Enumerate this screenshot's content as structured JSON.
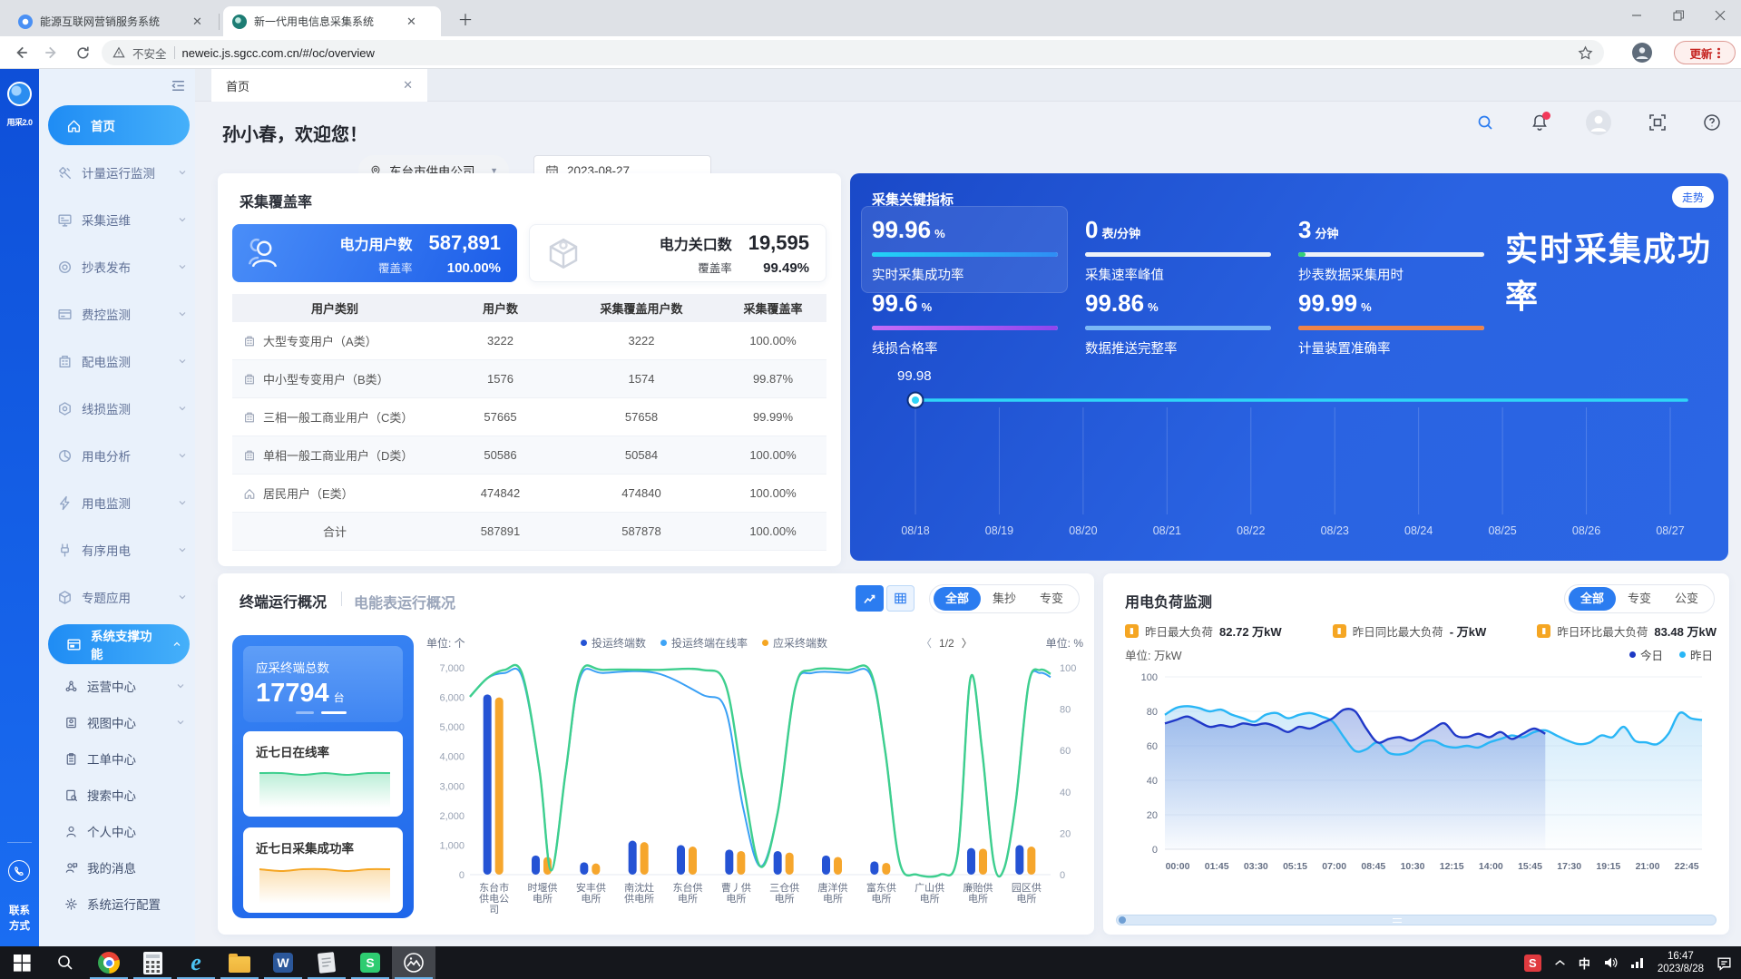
{
  "browser": {
    "tabs": [
      {
        "title": "能源互联网营销服务系统",
        "active": false
      },
      {
        "title": "新一代用电信息采集系统",
        "active": true
      }
    ],
    "security_label": "不安全",
    "url": "neweic.js.sgcc.com.cn/#/oc/overview",
    "update_label": "更新"
  },
  "brand": {
    "app_version": "用采2.0",
    "contact_line1": "联系",
    "contact_line2": "方式"
  },
  "header": {
    "page_tab": "首页",
    "greeting": "孙小春，欢迎您！",
    "org": "东台市供电公司",
    "date": "2023-08-27",
    "icons": [
      "search-icon",
      "bell-icon",
      "avatar",
      "fullscreen-icon",
      "help-icon"
    ]
  },
  "sidebar": {
    "items": [
      {
        "label": "首页",
        "icon": "home",
        "level": 1,
        "active": true,
        "arrow": null
      },
      {
        "label": "计量运行监测",
        "icon": "satellite",
        "level": 1,
        "arrow": "down"
      },
      {
        "label": "采集运维",
        "icon": "monitor",
        "level": 1,
        "arrow": "down"
      },
      {
        "label": "抄表发布",
        "icon": "target",
        "level": 1,
        "arrow": "down"
      },
      {
        "label": "费控监测",
        "icon": "card",
        "level": 1,
        "arrow": "down"
      },
      {
        "label": "配电监测",
        "icon": "building",
        "level": 1,
        "arrow": "down"
      },
      {
        "label": "线损监测",
        "icon": "hexagon",
        "level": 1,
        "arrow": "down"
      },
      {
        "label": "用电分析",
        "icon": "pie",
        "level": 1,
        "arrow": "down"
      },
      {
        "label": "用电监测",
        "icon": "flash",
        "level": 1,
        "arrow": "down"
      },
      {
        "label": "有序用电",
        "icon": "plug",
        "level": 1,
        "arrow": "down"
      },
      {
        "label": "专题应用",
        "icon": "cube",
        "level": 1,
        "arrow": "down"
      },
      {
        "label": "系统支撑功能",
        "icon": "panel",
        "level": 1,
        "active": true,
        "arrow": "up"
      },
      {
        "label": "运营中心",
        "icon": "nodes",
        "level": 2,
        "arrow": "down"
      },
      {
        "label": "视图中心",
        "icon": "idcard",
        "level": 2,
        "arrow": "down"
      },
      {
        "label": "工单中心",
        "icon": "clipboard",
        "level": 2,
        "arrow": null
      },
      {
        "label": "搜索中心",
        "icon": "docsearch",
        "level": 2,
        "arrow": null
      },
      {
        "label": "个人中心",
        "icon": "person",
        "level": 2,
        "arrow": null
      },
      {
        "label": "我的消息",
        "icon": "chat",
        "level": 2,
        "arrow": null
      },
      {
        "label": "系统运行配置",
        "icon": "gear",
        "level": 2,
        "arrow": null
      }
    ]
  },
  "coverage": {
    "title": "采集覆盖率",
    "stats": [
      {
        "icon": "users-icon",
        "label": "电力用户数",
        "value": "587,891",
        "sub_label": "覆盖率",
        "sub_value": "100.00%",
        "variant": "blue"
      },
      {
        "icon": "box-icon",
        "label": "电力关口数",
        "value": "19,595",
        "sub_label": "覆盖率",
        "sub_value": "99.49%",
        "variant": "white"
      }
    ],
    "table": {
      "headers": [
        "用户类别",
        "用户数",
        "采集覆盖用户数",
        "采集覆盖率"
      ],
      "rows": [
        {
          "icon": "building",
          "category": "大型专变用户（A类）",
          "users": "3222",
          "covered": "3222",
          "rate": "100.00%"
        },
        {
          "icon": "building",
          "category": "中小型专变用户（B类）",
          "users": "1576",
          "covered": "1574",
          "rate": "99.87%"
        },
        {
          "icon": "building",
          "category": "三相一般工商业用户（C类）",
          "users": "57665",
          "covered": "57658",
          "rate": "99.99%"
        },
        {
          "icon": "building",
          "category": "单相一般工商业用户（D类）",
          "users": "50586",
          "covered": "50584",
          "rate": "100.00%"
        },
        {
          "icon": "home",
          "category": "居民用户（E类）",
          "users": "474842",
          "covered": "474840",
          "rate": "100.00%"
        },
        {
          "icon": null,
          "category": "合计",
          "users": "587891",
          "covered": "587878",
          "rate": "100.00%"
        }
      ]
    }
  },
  "kpi": {
    "title": "采集关键指标",
    "trend_button": "走势",
    "big_text": "实时采集成功率",
    "cards": [
      {
        "value": "99.96",
        "unit": "%",
        "label": "实时采集成功率",
        "bar_color": "linear-gradient(90deg,#22d3f7,#2f8df5)",
        "bar_pct": 100,
        "highlight": true
      },
      {
        "value": "0",
        "unit": "表/分钟",
        "label": "采集速率峰值",
        "bar_color": "#eef2f8",
        "bar_pct": 100
      },
      {
        "value": "3",
        "unit": "分钟",
        "label": "抄表数据采集用时",
        "bar_color": "#eef2f8",
        "bar_pct": 100,
        "bar_cap_color": "#35d07a",
        "bar_cap_pct": 4
      },
      {
        "value": "99.6",
        "unit": "%",
        "label": "线损合格率",
        "bar_color": "linear-gradient(90deg,#c66df7,#8f46ee)",
        "bar_pct": 100
      },
      {
        "value": "99.86",
        "unit": "%",
        "label": "数据推送完整率",
        "bar_color": "#7ab8f5",
        "bar_pct": 100
      },
      {
        "value": "99.99",
        "unit": "%",
        "label": "计量装置准确率",
        "bar_color": "#ef8348",
        "bar_pct": 100
      }
    ]
  },
  "terminal": {
    "title": "终端运行概况",
    "title2": "电能表运行概况",
    "segments": [
      "全部",
      "集抄",
      "专变"
    ],
    "active_segment": "全部",
    "total_label": "应采终端总数",
    "total_value": "17794",
    "total_unit": "台",
    "spark1_label": "近七日在线率",
    "spark2_label": "近七日采集成功率",
    "unit_left": "单位: 个",
    "unit_right": "单位: %",
    "pagination": "1/2",
    "legend": [
      {
        "name": "投运终端数",
        "color": "#2553d4"
      },
      {
        "name": "投运终端在线率",
        "color": "#3fa4f6"
      },
      {
        "name": "应采终端数",
        "color": "#f5a623"
      }
    ]
  },
  "load": {
    "title": "用电负荷监测",
    "segments": [
      "全部",
      "专变",
      "公变"
    ],
    "active_segment": "全部",
    "stats": [
      {
        "label": "昨日最大负荷",
        "value": "82.72 万kW"
      },
      {
        "label": "昨日同比最大负荷",
        "value": "- 万kW"
      },
      {
        "label": "昨日环比最大负荷",
        "value": "83.48 万kW"
      }
    ],
    "unit": "单位: 万kW",
    "legend": [
      {
        "name": "今日",
        "color": "#1d39c4"
      },
      {
        "name": "昨日",
        "color": "#29b6f6"
      }
    ]
  },
  "taskbar": {
    "time": "16:47",
    "date": "2023/8/28",
    "apps": [
      {
        "name": "start-button",
        "open": false
      },
      {
        "name": "taskbar-search",
        "open": false
      },
      {
        "name": "chrome",
        "open": true
      },
      {
        "name": "calculator",
        "open": true
      },
      {
        "name": "internet-explorer",
        "open": true
      },
      {
        "name": "file-explorer",
        "open": true
      },
      {
        "name": "word",
        "open": true
      },
      {
        "name": "notepad",
        "open": true
      },
      {
        "name": "app-s",
        "open": true
      },
      {
        "name": "screenshot-tool",
        "open": true,
        "active": true
      }
    ],
    "tray": [
      "tray-s",
      "chevron-up",
      "ime",
      "volume",
      "network"
    ]
  },
  "chart_data": [
    {
      "name": "采集关键指标-实时采集成功率走势",
      "type": "line",
      "x": [
        "08/18",
        "08/19",
        "08/20",
        "08/21",
        "08/22",
        "08/23",
        "08/24",
        "08/25",
        "08/26",
        "08/27"
      ],
      "series": [
        {
          "name": "实时采集成功率",
          "values": [
            99.98,
            99.98,
            99.98,
            99.98,
            99.98,
            99.98,
            99.98,
            99.98,
            99.98,
            99.98
          ]
        }
      ],
      "point_label": "99.98",
      "ylim": [
        99.9,
        100.0
      ],
      "grid": true,
      "line_color": "#2fd5f8"
    },
    {
      "name": "终端运行概况",
      "type": "bar",
      "categories": [
        "东台市供电公司",
        "时堰供电所",
        "安丰供电所",
        "南沈灶供电所",
        "东台供电所",
        "曹丿供电所",
        "三仓供电所",
        "唐洋供电所",
        "富东供电所",
        "广山供电所",
        "廉贻供电所",
        "园区供电所"
      ],
      "series": [
        {
          "name": "投运终端数",
          "type": "bar",
          "color": "#2553d4",
          "values": [
            6100,
            650,
            420,
            1150,
            1000,
            850,
            800,
            650,
            450,
            0,
            900,
            1000
          ]
        },
        {
          "name": "应采终端数",
          "type": "bar",
          "color": "#f6a62c",
          "values": [
            6000,
            600,
            380,
            1100,
            950,
            800,
            750,
            600,
            400,
            0,
            880,
            950
          ]
        },
        {
          "name": "投运终端在线率",
          "type": "line",
          "color": "#3aa0f5",
          "axis": "percent",
          "points": [
            [
              0,
              86
            ],
            [
              0.03,
              95
            ],
            [
              0.06,
              99
            ],
            [
              0.09,
              97
            ],
            [
              0.12,
              50
            ],
            [
              0.14,
              2
            ],
            [
              0.165,
              50
            ],
            [
              0.19,
              97
            ],
            [
              0.23,
              99
            ],
            [
              0.32,
              99
            ],
            [
              0.4,
              99
            ],
            [
              0.44,
              92
            ],
            [
              0.47,
              45
            ],
            [
              0.5,
              4
            ],
            [
              0.53,
              30
            ],
            [
              0.56,
              90
            ],
            [
              0.59,
              99
            ],
            [
              0.65,
              99
            ],
            [
              0.69,
              98
            ],
            [
              0.715,
              60
            ],
            [
              0.74,
              6
            ],
            [
              0.77,
              0
            ],
            [
              0.81,
              0
            ],
            [
              0.84,
              10
            ],
            [
              0.862,
              95
            ],
            [
              0.882,
              60
            ],
            [
              0.902,
              6
            ],
            [
              0.92,
              3
            ],
            [
              0.94,
              35
            ],
            [
              0.962,
              92
            ],
            [
              0.982,
              99
            ],
            [
              1,
              97
            ]
          ]
        },
        {
          "name": "",
          "note": "绿色曲线，图例在第2/2页（名称不可见）",
          "type": "line",
          "color": "#3ecf8e",
          "axis": "percent",
          "same_shape_as": 2
        }
      ],
      "ylim_left": [
        0,
        7000
      ],
      "ylim_right": [
        0,
        100
      ],
      "legend_pages": "1/2"
    },
    {
      "name": "用电负荷监测",
      "type": "line",
      "x_labels": [
        "00:00",
        "01:45",
        "03:30",
        "05:15",
        "07:00",
        "08:45",
        "10:30",
        "12:15",
        "14:00",
        "15:45",
        "17:30",
        "19:15",
        "21:00",
        "22:45"
      ],
      "sample_interval_minutes": 30,
      "series": [
        {
          "name": "今日",
          "color": "#2038c8",
          "values": [
            73,
            75,
            77,
            74,
            71,
            72,
            71,
            73,
            72,
            73,
            71,
            68,
            71,
            70,
            73,
            76,
            81,
            80,
            70,
            62,
            64,
            65,
            63,
            66,
            70,
            73,
            66,
            65,
            67,
            65,
            68,
            64,
            67,
            70,
            67
          ]
        },
        {
          "name": "昨日",
          "color": "#29b6f6",
          "values": [
            78,
            82,
            83,
            82,
            80,
            81,
            78,
            76,
            74,
            78,
            79,
            76,
            78,
            79,
            77,
            74,
            65,
            57,
            58,
            62,
            56,
            55,
            57,
            62,
            63,
            60,
            59,
            60,
            59,
            62,
            64,
            66,
            65,
            68,
            69,
            66,
            63,
            61,
            62,
            66,
            65,
            71,
            63,
            62,
            61,
            67,
            79,
            76,
            75
          ]
        }
      ],
      "ylim": [
        0,
        100
      ],
      "ylabel": "万kW",
      "grid": true
    },
    {
      "name": "近七日趋势小图",
      "type": "area",
      "series": [
        {
          "name": "近七日在线率",
          "color": "#3ecf8e",
          "values": [
            100,
            100,
            99.9,
            100,
            99.9,
            100,
            100
          ]
        },
        {
          "name": "近七日采集成功率",
          "color": "#f5a623",
          "values": [
            100,
            99.9,
            100,
            100,
            99.9,
            100,
            100
          ]
        }
      ]
    }
  ]
}
